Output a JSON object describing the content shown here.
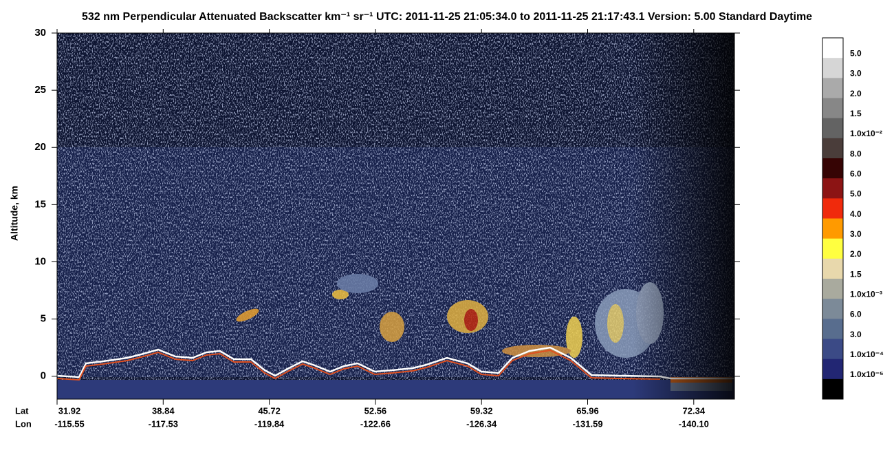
{
  "chart_data": {
    "type": "heatmap",
    "title": "532 nm Perpendicular Attenuated Backscatter km⁻¹ sr⁻¹  UTC: 2011-11-25 21:05:34.0 to 2011-11-25 21:17:43.1  Version: 5.00 Standard Daytime",
    "ylabel": "Altitude, km",
    "ylim": [
      -2,
      30
    ],
    "yticks": [
      0,
      5,
      10,
      15,
      20,
      25,
      30
    ],
    "x_row_labels": [
      "Lat",
      "Lon"
    ],
    "lat": [
      "31.92",
      "38.84",
      "45.72",
      "52.56",
      "59.32",
      "65.96",
      "72.34"
    ],
    "lon": [
      "-115.55",
      "-117.53",
      "-119.84",
      "-122.66",
      "-126.34",
      "-131.59",
      "-140.10"
    ],
    "colorbar": {
      "labels": [
        "5.0",
        "3.0",
        "2.0",
        "1.5",
        "1.0x10⁻²",
        "8.0",
        "6.0",
        "5.0",
        "4.0",
        "3.0",
        "2.0",
        "1.5",
        "1.0x10⁻³",
        "6.0",
        "3.0",
        "1.0x10⁻⁴",
        "1.0x10⁻⁵"
      ],
      "colors": [
        "#ffffff",
        "#d6d6d6",
        "#aaaaaa",
        "#878787",
        "#636363",
        "#4a3d3a",
        "#360404",
        "#8c1414",
        "#f02a0c",
        "#ff9a00",
        "#ffff40",
        "#e8d8ac",
        "#a9aa9e",
        "#7c8a98",
        "#586d8e",
        "#3b4a86",
        "#222673",
        "#000000"
      ]
    }
  }
}
